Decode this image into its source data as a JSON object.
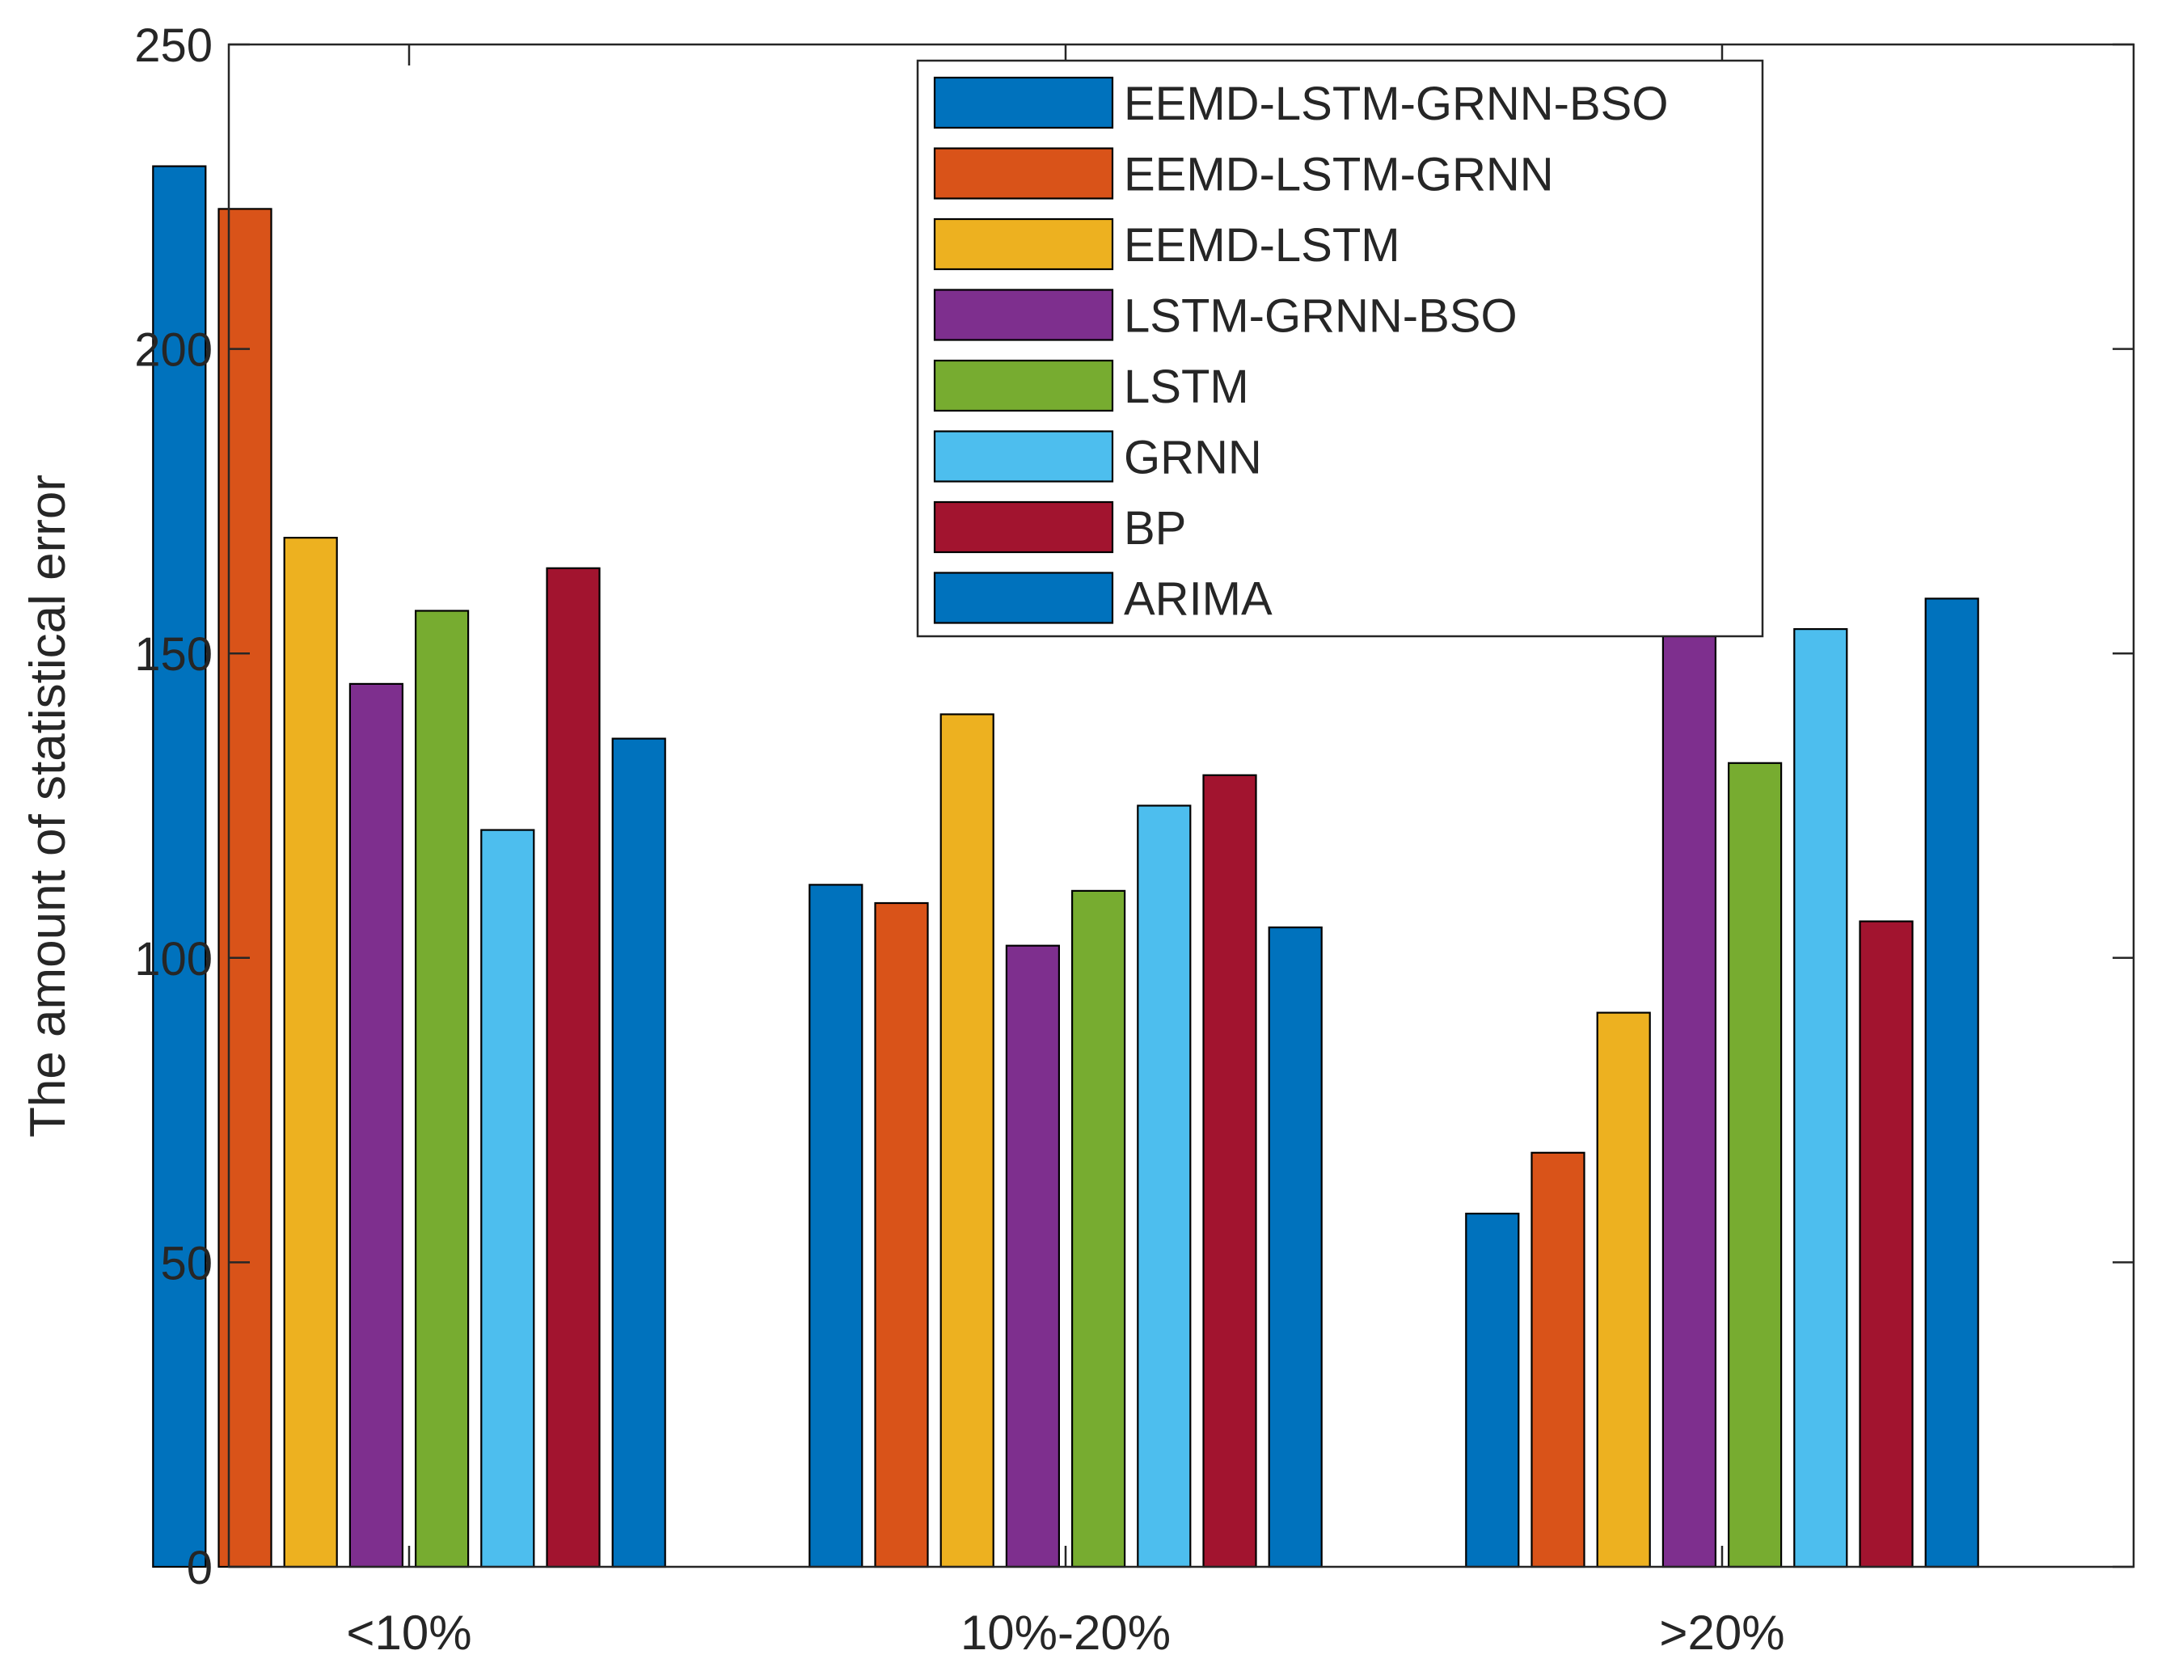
{
  "chart_data": {
    "type": "bar",
    "title": "",
    "xlabel": "",
    "ylabel": "The amount of statistical error",
    "categories": [
      "<10%",
      "10%-20%",
      ">20%"
    ],
    "ylim": [
      0,
      250
    ],
    "yticks": [
      "0",
      "50",
      "100",
      "150",
      "200",
      "250"
    ],
    "grid": false,
    "legend_position": "top-center",
    "series": [
      {
        "name": "EEMD-LSTM-GRNN-BSO",
        "color": "#0072BD",
        "values": [
          230,
          112,
          58
        ]
      },
      {
        "name": "EEMD-LSTM-GRNN",
        "color": "#D95319",
        "values": [
          223,
          109,
          68
        ]
      },
      {
        "name": "EEMD-LSTM",
        "color": "#EDB120",
        "values": [
          169,
          140,
          91
        ]
      },
      {
        "name": "LSTM-GRNN-BSO",
        "color": "#7E2F8E",
        "values": [
          145,
          102,
          153
        ]
      },
      {
        "name": "LSTM",
        "color": "#77AC30",
        "values": [
          157,
          111,
          132
        ]
      },
      {
        "name": "GRNN",
        "color": "#4DBEEE",
        "values": [
          121,
          125,
          154
        ]
      },
      {
        "name": "BP",
        "color": "#A2142F",
        "values": [
          164,
          130,
          106
        ]
      },
      {
        "name": "ARIMA",
        "color": "#0072BD",
        "values": [
          136,
          105,
          159
        ]
      }
    ]
  }
}
